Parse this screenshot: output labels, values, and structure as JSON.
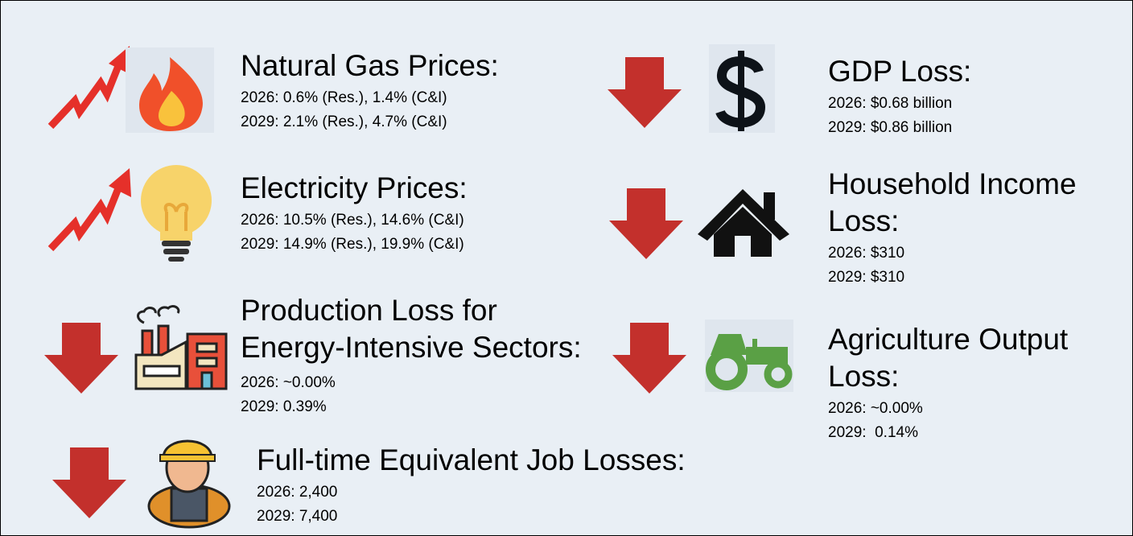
{
  "items": [
    {
      "title": [
        "Natural Gas Prices:"
      ],
      "lines": [
        "2026: 0.6% (Res.), 1.4% (C&I)",
        "2029: 2.1% (Res.), 4.7% (C&I)"
      ]
    },
    {
      "title": [
        "Electricity Prices:"
      ],
      "lines": [
        "2026: 10.5% (Res.), 14.6% (C&I)",
        "2029: 14.9% (Res.), 19.9% (C&I)"
      ]
    },
    {
      "title": [
        "Production Loss for",
        "Energy-Intensive Sectors:"
      ],
      "lines": [
        "2026: ~0.00%",
        "2029: 0.39%"
      ]
    },
    {
      "title": [
        "Full-time Equivalent Job Losses:"
      ],
      "lines": [
        "2026: 2,400",
        "2029: 7,400"
      ]
    },
    {
      "title": [
        "GDP Loss:"
      ],
      "lines": [
        "2026: $0.68 billion",
        "2029: $0.86 billion"
      ]
    },
    {
      "title": [
        "Household Income",
        "Loss:"
      ],
      "lines": [
        "2026: $310",
        "2029: $310"
      ]
    },
    {
      "title": [
        "Agriculture Output",
        "Loss:"
      ],
      "lines": [
        "2026: ~0.00%",
        "2029:  0.14%"
      ]
    }
  ]
}
